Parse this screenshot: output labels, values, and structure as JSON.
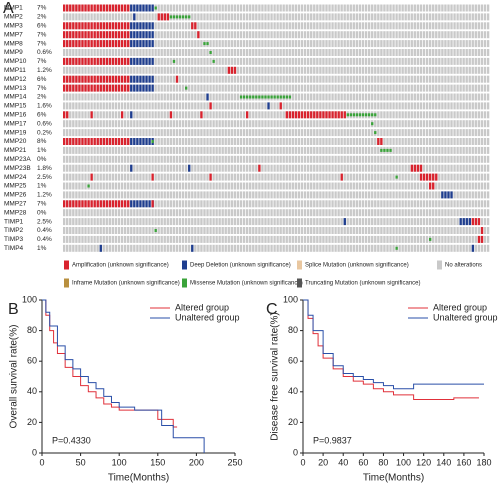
{
  "chart_data": [
    {
      "type": "oncoprint",
      "label": "A",
      "xlim": [
        0,
        140
      ],
      "categories": [
        "MMP1",
        "MMP2",
        "MMP3",
        "MMP7",
        "MMP8",
        "MMP9",
        "MMP10",
        "MMP11",
        "MMP12",
        "MMP13",
        "MMP14",
        "MMP15",
        "MMP16",
        "MMP17",
        "MMP19",
        "MMP20",
        "MMP21",
        "MMP23A",
        "MMP23B",
        "MMP24",
        "MMP25",
        "MMP26",
        "MMP27",
        "MMP28",
        "TIMP1",
        "TIMP2",
        "TIMP3",
        "TIMP4"
      ],
      "values": [
        7,
        2,
        6,
        7,
        7,
        0.6,
        7,
        1.2,
        6,
        7,
        2,
        1.6,
        6,
        0.6,
        0.2,
        8,
        1,
        0,
        1.8,
        2.5,
        1,
        1.2,
        7,
        0,
        2.5,
        0.4,
        0.4,
        1
      ],
      "value_labels": [
        "7%",
        "2%",
        "6%",
        "7%",
        "7%",
        "0.6%",
        "7%",
        "1.2%",
        "6%",
        "7%",
        "2%",
        "1.6%",
        "6%",
        "0.6%",
        "0.2%",
        "8%",
        "1%",
        "0%",
        "1.8%",
        "2.5%",
        "1%",
        "1.2%",
        "7%",
        "0%",
        "2.5%",
        "0.4%",
        "0.4%",
        "1%"
      ],
      "legend": [
        {
          "label": "Amplification (unknown significance)",
          "color": "#d9232e"
        },
        {
          "label": "Deep Deletion (unknown significance)",
          "color": "#1f3e8f"
        },
        {
          "label": "Splice Mutation (unknown significance)",
          "color": "#e9c7a0"
        },
        {
          "label": "No alterations",
          "color": "#c9c9c9"
        },
        {
          "label": "Inframe Mutation (unknown significance)",
          "color": "#b88f3e"
        },
        {
          "label": "Missense Mutation (unknown significance)",
          "color": "#3aa33a"
        },
        {
          "label": "Truncating Mutation (unknown significance)",
          "color": "#555555"
        }
      ],
      "alterations": [
        [
          [
            0,
            22,
            0
          ],
          [
            22,
            8,
            1
          ],
          [
            30,
            1,
            5
          ]
        ],
        [
          [
            23,
            1,
            1
          ],
          [
            31,
            4,
            0
          ],
          [
            35,
            7,
            5
          ]
        ],
        [
          [
            0,
            22,
            0
          ],
          [
            22,
            8,
            1
          ],
          [
            42,
            2,
            0
          ]
        ],
        [
          [
            0,
            22,
            0
          ],
          [
            22,
            8,
            1
          ],
          [
            44,
            1,
            0
          ]
        ],
        [
          [
            0,
            22,
            0
          ],
          [
            22,
            8,
            1
          ],
          [
            46,
            2,
            5
          ]
        ],
        [
          [
            48,
            1,
            5
          ]
        ],
        [
          [
            0,
            22,
            0
          ],
          [
            22,
            8,
            1
          ],
          [
            36,
            1,
            5
          ],
          [
            49,
            1,
            5
          ]
        ],
        [
          [
            54,
            3,
            0
          ]
        ],
        [
          [
            0,
            22,
            0
          ],
          [
            22,
            8,
            1
          ],
          [
            37,
            1,
            0
          ]
        ],
        [
          [
            0,
            22,
            0
          ],
          [
            22,
            8,
            1
          ],
          [
            40,
            1,
            5
          ]
        ],
        [
          [
            47,
            1,
            1
          ],
          [
            58,
            17,
            5
          ]
        ],
        [
          [
            48,
            1,
            0
          ],
          [
            67,
            1,
            1
          ],
          [
            71,
            1,
            0
          ]
        ],
        [
          [
            0,
            2,
            0
          ],
          [
            9,
            1,
            0
          ],
          [
            19,
            1,
            0
          ],
          [
            22,
            1,
            1
          ],
          [
            35,
            1,
            0
          ],
          [
            45,
            1,
            0
          ],
          [
            60,
            1,
            0
          ],
          [
            73,
            20,
            0
          ],
          [
            93,
            10,
            5
          ]
        ],
        [
          [
            101,
            1,
            5
          ]
        ],
        [
          [
            102,
            1,
            5
          ]
        ],
        [
          [
            0,
            22,
            0
          ],
          [
            22,
            8,
            1
          ],
          [
            29,
            1,
            5
          ],
          [
            103,
            2,
            0
          ]
        ],
        [
          [
            104,
            4,
            5
          ]
        ],
        [],
        [
          [
            22,
            1,
            1
          ],
          [
            41,
            1,
            1
          ],
          [
            64,
            1,
            0
          ],
          [
            114,
            4,
            0
          ]
        ],
        [
          [
            9,
            1,
            0
          ],
          [
            29,
            1,
            0
          ],
          [
            48,
            1,
            0
          ],
          [
            91,
            1,
            0
          ],
          [
            109,
            1,
            5
          ],
          [
            117,
            6,
            0
          ]
        ],
        [
          [
            8,
            1,
            5
          ],
          [
            120,
            2,
            0
          ]
        ],
        [
          [
            124,
            4,
            1
          ]
        ],
        [
          [
            0,
            22,
            0
          ],
          [
            22,
            8,
            1
          ],
          [
            29,
            1,
            0
          ]
        ],
        [],
        [
          [
            92,
            1,
            1
          ],
          [
            130,
            4,
            1
          ],
          [
            134,
            3,
            0
          ]
        ],
        [
          [
            30,
            1,
            5
          ],
          [
            137,
            1,
            0
          ]
        ],
        [
          [
            120,
            1,
            5
          ],
          [
            136,
            2,
            0
          ]
        ],
        [
          [
            12,
            1,
            1
          ],
          [
            42,
            1,
            1
          ],
          [
            109,
            1,
            5
          ],
          [
            134,
            1,
            1
          ]
        ]
      ]
    },
    {
      "type": "km",
      "label": "B",
      "ylabel": "Overall survival rate(%)",
      "xlabel": "Time(Months)",
      "xlim": [
        0,
        250
      ],
      "ylim": [
        0,
        100
      ],
      "xticks": [
        0,
        50,
        100,
        150,
        200,
        250
      ],
      "yticks": [
        0,
        20,
        40,
        60,
        80,
        100
      ],
      "annotation": "P=0.4330",
      "series": [
        {
          "name": "Altered group",
          "color": "#e0303a",
          "x": [
            0,
            5,
            10,
            15,
            20,
            30,
            40,
            50,
            60,
            70,
            80,
            90,
            100,
            150,
            170,
            175
          ],
          "values": [
            100,
            90,
            80,
            72,
            65,
            56,
            50,
            44,
            40,
            36,
            32,
            30,
            28,
            22,
            17,
            17
          ]
        },
        {
          "name": "Unaltered group",
          "color": "#2a4fa8",
          "x": [
            0,
            5,
            10,
            20,
            30,
            40,
            50,
            60,
            70,
            80,
            90,
            100,
            120,
            155,
            170,
            210,
            210
          ],
          "values": [
            100,
            92,
            83,
            70,
            61,
            55,
            50,
            46,
            42,
            37,
            33,
            30,
            28,
            18,
            10,
            10,
            0
          ]
        }
      ]
    },
    {
      "type": "km",
      "label": "C",
      "ylabel": "Disease free survival rate(%)",
      "xlabel": "Time(Months)",
      "xlim": [
        0,
        180
      ],
      "ylim": [
        0,
        100
      ],
      "xticks": [
        0,
        20,
        40,
        60,
        80,
        100,
        120,
        140,
        160,
        180
      ],
      "yticks": [
        0,
        20,
        40,
        60,
        80,
        100
      ],
      "annotation": "P=0.9837",
      "series": [
        {
          "name": "Altered group",
          "color": "#e0303a",
          "x": [
            0,
            5,
            10,
            15,
            20,
            30,
            40,
            50,
            60,
            70,
            80,
            90,
            110,
            150,
            175
          ],
          "values": [
            100,
            88,
            78,
            70,
            62,
            55,
            50,
            47,
            45,
            42,
            40,
            38,
            35,
            36,
            36
          ]
        },
        {
          "name": "Unaltered group",
          "color": "#2a4fa8",
          "x": [
            0,
            5,
            10,
            20,
            30,
            40,
            50,
            60,
            70,
            80,
            90,
            110,
            180
          ],
          "values": [
            100,
            90,
            80,
            65,
            57,
            52,
            50,
            48,
            46,
            44,
            42,
            45,
            45
          ]
        }
      ]
    }
  ]
}
